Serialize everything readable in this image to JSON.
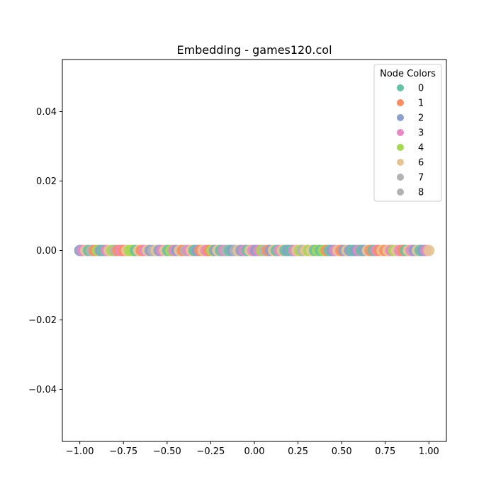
{
  "chart_data": {
    "type": "scatter",
    "title": "Embedding - games120.col",
    "xlabel": "",
    "ylabel": "",
    "xlim": [
      -1.1,
      1.1
    ],
    "ylim": [
      -0.055,
      0.055
    ],
    "x_ticks": [
      -1.0,
      -0.75,
      -0.5,
      -0.25,
      0.0,
      0.25,
      0.5,
      0.75,
      1.0
    ],
    "x_tick_labels": [
      "−1.00",
      "−0.75",
      "−0.50",
      "−0.25",
      "0.00",
      "0.25",
      "0.50",
      "0.75",
      "1.00"
    ],
    "y_ticks": [
      -0.04,
      -0.02,
      0.0,
      0.02,
      0.04
    ],
    "y_tick_labels": [
      "−0.04",
      "−0.02",
      "0.00",
      "0.02",
      "0.04"
    ],
    "grid": false,
    "legend": {
      "title": "Node Colors",
      "placement": "top-right",
      "entries": [
        {
          "label": "0",
          "color": "#66c2a5"
        },
        {
          "label": "1",
          "color": "#fc8d62"
        },
        {
          "label": "2",
          "color": "#8da0cb"
        },
        {
          "label": "3",
          "color": "#e78ac3"
        },
        {
          "label": "4",
          "color": "#a6d854"
        },
        {
          "label": "6",
          "color": "#e5c494"
        },
        {
          "label": "7",
          "color": "#b3b3b3"
        },
        {
          "label": "8",
          "color": "#b3b3b3"
        }
      ]
    },
    "points": [
      {
        "x": -1.0,
        "y": 0,
        "c": "2"
      },
      {
        "x": -0.983,
        "y": 0,
        "c": "3"
      },
      {
        "x": -0.966,
        "y": 0,
        "c": "6"
      },
      {
        "x": -0.95,
        "y": 0,
        "c": "0"
      },
      {
        "x": -0.933,
        "y": 0,
        "c": "7"
      },
      {
        "x": -0.916,
        "y": 0,
        "c": "1"
      },
      {
        "x": -0.899,
        "y": 0,
        "c": "4"
      },
      {
        "x": -0.882,
        "y": 0,
        "c": "2"
      },
      {
        "x": -0.866,
        "y": 0,
        "c": "0"
      },
      {
        "x": -0.849,
        "y": 0,
        "c": "3"
      },
      {
        "x": -0.832,
        "y": 0,
        "c": "6"
      },
      {
        "x": -0.815,
        "y": 0,
        "c": "4"
      },
      {
        "x": -0.798,
        "y": 0,
        "c": "7"
      },
      {
        "x": -0.782,
        "y": 0,
        "c": "1"
      },
      {
        "x": -0.765,
        "y": 0,
        "c": "3"
      },
      {
        "x": -0.748,
        "y": 0,
        "c": "1"
      },
      {
        "x": -0.731,
        "y": 0,
        "c": "6"
      },
      {
        "x": -0.714,
        "y": 0,
        "c": "4"
      },
      {
        "x": -0.697,
        "y": 0,
        "c": "4"
      },
      {
        "x": -0.681,
        "y": 0,
        "c": "0"
      },
      {
        "x": -0.664,
        "y": 0,
        "c": "6"
      },
      {
        "x": -0.647,
        "y": 0,
        "c": "1"
      },
      {
        "x": -0.63,
        "y": 0,
        "c": "3"
      },
      {
        "x": -0.613,
        "y": 0,
        "c": "6"
      },
      {
        "x": -0.597,
        "y": 0,
        "c": "2"
      },
      {
        "x": -0.58,
        "y": 0,
        "c": "7"
      },
      {
        "x": -0.563,
        "y": 0,
        "c": "6"
      },
      {
        "x": -0.546,
        "y": 0,
        "c": "2"
      },
      {
        "x": -0.529,
        "y": 0,
        "c": "3"
      },
      {
        "x": -0.513,
        "y": 0,
        "c": "6"
      },
      {
        "x": -0.496,
        "y": 0,
        "c": "0"
      },
      {
        "x": -0.479,
        "y": 0,
        "c": "4"
      },
      {
        "x": -0.462,
        "y": 0,
        "c": "3"
      },
      {
        "x": -0.445,
        "y": 0,
        "c": "2"
      },
      {
        "x": -0.429,
        "y": 0,
        "c": "6"
      },
      {
        "x": -0.412,
        "y": 0,
        "c": "1"
      },
      {
        "x": -0.395,
        "y": 0,
        "c": "7"
      },
      {
        "x": -0.378,
        "y": 0,
        "c": "3"
      },
      {
        "x": -0.361,
        "y": 0,
        "c": "6"
      },
      {
        "x": -0.345,
        "y": 0,
        "c": "0"
      },
      {
        "x": -0.328,
        "y": 0,
        "c": "2"
      },
      {
        "x": -0.311,
        "y": 0,
        "c": "1"
      },
      {
        "x": -0.294,
        "y": 0,
        "c": "6"
      },
      {
        "x": -0.277,
        "y": 0,
        "c": "3"
      },
      {
        "x": -0.261,
        "y": 0,
        "c": "1"
      },
      {
        "x": -0.244,
        "y": 0,
        "c": "4"
      },
      {
        "x": -0.227,
        "y": 0,
        "c": "2"
      },
      {
        "x": -0.21,
        "y": 0,
        "c": "6"
      },
      {
        "x": -0.193,
        "y": 0,
        "c": "0"
      },
      {
        "x": -0.176,
        "y": 0,
        "c": "3"
      },
      {
        "x": -0.16,
        "y": 0,
        "c": "7"
      },
      {
        "x": -0.143,
        "y": 0,
        "c": "0"
      },
      {
        "x": -0.126,
        "y": 0,
        "c": "2"
      },
      {
        "x": -0.109,
        "y": 0,
        "c": "8"
      },
      {
        "x": -0.092,
        "y": 0,
        "c": "6"
      },
      {
        "x": -0.076,
        "y": 0,
        "c": "2"
      },
      {
        "x": -0.059,
        "y": 0,
        "c": "3"
      },
      {
        "x": -0.042,
        "y": 0,
        "c": "0"
      },
      {
        "x": -0.025,
        "y": 0,
        "c": "6"
      },
      {
        "x": -0.008,
        "y": 0,
        "c": "3"
      },
      {
        "x": 0.008,
        "y": 0,
        "c": "2"
      },
      {
        "x": 0.025,
        "y": 0,
        "c": "3"
      },
      {
        "x": 0.042,
        "y": 0,
        "c": "4"
      },
      {
        "x": 0.059,
        "y": 0,
        "c": "7"
      },
      {
        "x": 0.076,
        "y": 0,
        "c": "1"
      },
      {
        "x": 0.092,
        "y": 0,
        "c": "2"
      },
      {
        "x": 0.109,
        "y": 0,
        "c": "6"
      },
      {
        "x": 0.126,
        "y": 0,
        "c": "0"
      },
      {
        "x": 0.143,
        "y": 0,
        "c": "3"
      },
      {
        "x": 0.16,
        "y": 0,
        "c": "6"
      },
      {
        "x": 0.176,
        "y": 0,
        "c": "0"
      },
      {
        "x": 0.193,
        "y": 0,
        "c": "2"
      },
      {
        "x": 0.21,
        "y": 0,
        "c": "0"
      },
      {
        "x": 0.227,
        "y": 0,
        "c": "3"
      },
      {
        "x": 0.244,
        "y": 0,
        "c": "6"
      },
      {
        "x": 0.261,
        "y": 0,
        "c": "4"
      },
      {
        "x": 0.277,
        "y": 0,
        "c": "7"
      },
      {
        "x": 0.294,
        "y": 0,
        "c": "6"
      },
      {
        "x": 0.311,
        "y": 0,
        "c": "4"
      },
      {
        "x": 0.328,
        "y": 0,
        "c": "6"
      },
      {
        "x": 0.345,
        "y": 0,
        "c": "0"
      },
      {
        "x": 0.361,
        "y": 0,
        "c": "4"
      },
      {
        "x": 0.378,
        "y": 0,
        "c": "0"
      },
      {
        "x": 0.395,
        "y": 0,
        "c": "4"
      },
      {
        "x": 0.412,
        "y": 0,
        "c": "1"
      },
      {
        "x": 0.429,
        "y": 0,
        "c": "0"
      },
      {
        "x": 0.445,
        "y": 0,
        "c": "2"
      },
      {
        "x": 0.462,
        "y": 0,
        "c": "3"
      },
      {
        "x": 0.479,
        "y": 0,
        "c": "6"
      },
      {
        "x": 0.496,
        "y": 0,
        "c": "1"
      },
      {
        "x": 0.513,
        "y": 0,
        "c": "2"
      },
      {
        "x": 0.529,
        "y": 0,
        "c": "6"
      },
      {
        "x": 0.546,
        "y": 0,
        "c": "2"
      },
      {
        "x": 0.563,
        "y": 0,
        "c": "0"
      },
      {
        "x": 0.58,
        "y": 0,
        "c": "2"
      },
      {
        "x": 0.597,
        "y": 0,
        "c": "3"
      },
      {
        "x": 0.613,
        "y": 0,
        "c": "0"
      },
      {
        "x": 0.63,
        "y": 0,
        "c": "2"
      },
      {
        "x": 0.647,
        "y": 0,
        "c": "6"
      },
      {
        "x": 0.664,
        "y": 0,
        "c": "1"
      },
      {
        "x": 0.681,
        "y": 0,
        "c": "0"
      },
      {
        "x": 0.697,
        "y": 0,
        "c": "3"
      },
      {
        "x": 0.714,
        "y": 0,
        "c": "1"
      },
      {
        "x": 0.731,
        "y": 0,
        "c": "6"
      },
      {
        "x": 0.748,
        "y": 0,
        "c": "1"
      },
      {
        "x": 0.765,
        "y": 0,
        "c": "6"
      },
      {
        "x": 0.782,
        "y": 0,
        "c": "3"
      },
      {
        "x": 0.798,
        "y": 0,
        "c": "4"
      },
      {
        "x": 0.815,
        "y": 0,
        "c": "6"
      },
      {
        "x": 0.832,
        "y": 0,
        "c": "3"
      },
      {
        "x": 0.849,
        "y": 0,
        "c": "1"
      },
      {
        "x": 0.866,
        "y": 0,
        "c": "0"
      },
      {
        "x": 0.882,
        "y": 0,
        "c": "6"
      },
      {
        "x": 0.899,
        "y": 0,
        "c": "3"
      },
      {
        "x": 0.916,
        "y": 0,
        "c": "2"
      },
      {
        "x": 0.933,
        "y": 0,
        "c": "6"
      },
      {
        "x": 0.95,
        "y": 0,
        "c": "0"
      },
      {
        "x": 0.966,
        "y": 0,
        "c": "2"
      },
      {
        "x": 0.983,
        "y": 0,
        "c": "3"
      },
      {
        "x": 1.0,
        "y": 0,
        "c": "6"
      }
    ]
  }
}
